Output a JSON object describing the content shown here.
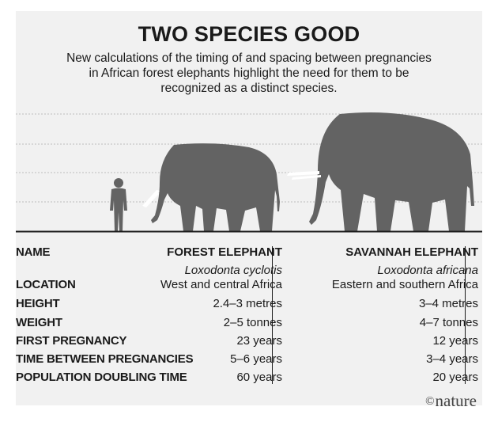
{
  "title": "TWO SPECIES GOOD",
  "subtitle": "New calculations of the timing of and spacing between pregnancies in African forest elephants highlight the need for them to be recognized as a distinct species.",
  "illustration": {
    "figures": [
      "human-icon",
      "forest-elephant-icon",
      "savannah-elephant-icon"
    ],
    "colors": {
      "background": "#f1f1f1",
      "silhouette": "#636363",
      "gridline": "#bdbdbd",
      "ground": "#1a1a1a"
    }
  },
  "table": {
    "header": {
      "label": "NAME",
      "forest": "FOREST ELEPHANT",
      "savannah": "SAVANNAH ELEPHANT"
    },
    "latin": {
      "forest": "Loxodonta cyclotis",
      "savannah": "Loxodonta africana"
    },
    "rows": [
      {
        "label": "LOCATION",
        "forest": "West and central Africa",
        "savannah": "Eastern and southern Africa"
      },
      {
        "label": "HEIGHT",
        "forest": "2.4–3 metres",
        "savannah": "3–4 metres"
      },
      {
        "label": "WEIGHT",
        "forest": "2–5 tonnes",
        "savannah": "4–7 tonnes"
      },
      {
        "label": "FIRST PREGNANCY",
        "forest": "23 years",
        "savannah": "12 years"
      },
      {
        "label": "TIME BETWEEN PREGNANCIES",
        "forest": "5–6 years",
        "savannah": "3–4 years"
      },
      {
        "label": "POPULATION DOUBLING TIME",
        "forest": "60 years",
        "savannah": "20 years"
      }
    ]
  },
  "credit": {
    "symbol": "©",
    "name": "nature"
  }
}
